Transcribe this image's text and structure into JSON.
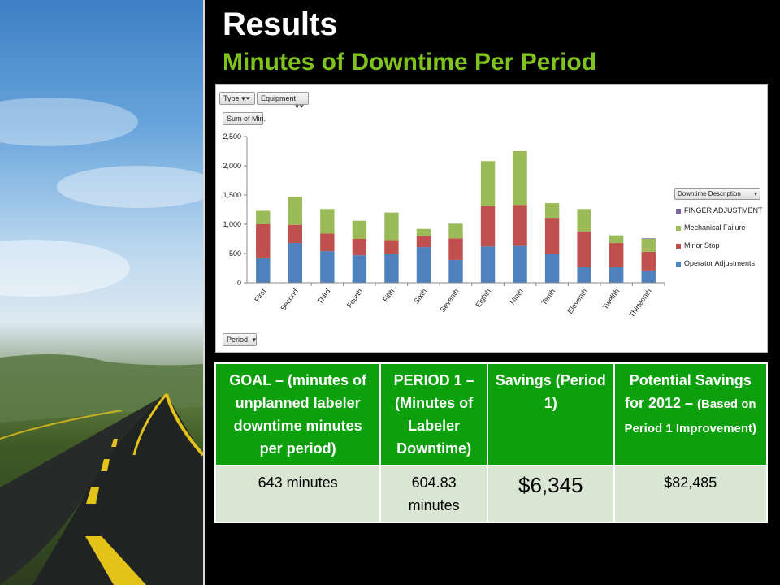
{
  "slide": {
    "title": "Results",
    "subtitle": "Minutes of Downtime Per Period"
  },
  "pivot": {
    "filter_type": "Type",
    "filter_equipment": "Equipment",
    "value_field": "Sum of Min.",
    "row_field": "Period",
    "legend_field": "Downtime Description"
  },
  "chart_data": {
    "type": "bar",
    "stacked": true,
    "categories": [
      "First",
      "Second",
      "Third",
      "Fourth",
      "Fifth",
      "Sixth",
      "Seventh",
      "Eighth",
      "Ninth",
      "Tenth",
      "Eleventh",
      "Twelfth",
      "Thirteenth"
    ],
    "series": [
      {
        "name": "Operator Adjustments",
        "color": "#4f81bd",
        "values": [
          420,
          680,
          540,
          470,
          490,
          610,
          390,
          620,
          630,
          500,
          270,
          270,
          210
        ]
      },
      {
        "name": "Minor Stop",
        "color": "#c0504d",
        "values": [
          580,
          310,
          300,
          280,
          240,
          190,
          370,
          690,
          700,
          610,
          610,
          410,
          320
        ]
      },
      {
        "name": "Mechanical Failure",
        "color": "#9bbb59",
        "values": [
          230,
          480,
          420,
          310,
          470,
          120,
          250,
          770,
          920,
          250,
          380,
          130,
          220
        ]
      },
      {
        "name": "FINGER ADJUSTMENT",
        "color": "#8064a2",
        "values": [
          0,
          0,
          0,
          0,
          0,
          0,
          0,
          0,
          0,
          0,
          0,
          0,
          10
        ]
      }
    ],
    "ylim": [
      0,
      2500
    ],
    "yticks": [
      "0",
      "500",
      "1,000",
      "1,500",
      "2,000",
      "2,500"
    ],
    "legend": "right",
    "grid": false
  },
  "table": {
    "headers": {
      "goal": "GOAL – (minutes of unplanned labeler downtime minutes per period)",
      "period1": "PERIOD 1 – (Minutes of Labeler Downtime)",
      "savings": "Savings (Period 1)",
      "potential_main": "Potential Savings for 2012 –",
      "potential_note": "(Based on Period 1 Improvement)"
    },
    "values": {
      "goal": "643 minutes",
      "period1": "604.83 minutes",
      "savings": "$6,345",
      "potential": "$82,485"
    }
  }
}
